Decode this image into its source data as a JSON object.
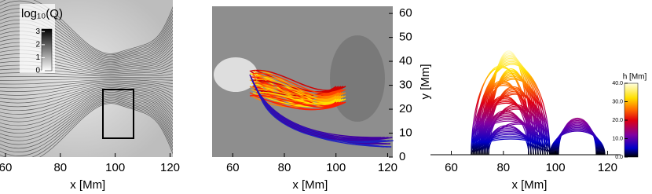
{
  "chart_data": [
    {
      "type": "image",
      "xlabel": "x [Mm]",
      "xlim": [
        58,
        121
      ],
      "xticks": [
        60,
        80,
        100,
        120
      ],
      "colorbar": {
        "label": "log₁₀(Q)",
        "lim": [
          0,
          3.2
        ],
        "ticks": [
          3,
          2,
          1,
          0
        ]
      }
    },
    {
      "type": "image",
      "xlabel": "x [Mm]",
      "ylabel": "y [Mm]",
      "xlim": [
        52,
        122
      ],
      "xticks": [
        60,
        80,
        100,
        120
      ],
      "ylim": [
        0,
        63
      ],
      "yticks": [
        0,
        10,
        20,
        30,
        40,
        50,
        60
      ]
    },
    {
      "type": "image",
      "xlabel": "x [Mm]",
      "xlim": [
        52,
        125
      ],
      "xticks": [
        60,
        80,
        100,
        120
      ],
      "colorbar": {
        "label": "h [Mm]",
        "lim": [
          0,
          40
        ],
        "ticks": [
          {
            "value": 0,
            "label": "0.0"
          },
          {
            "value": 10,
            "label": "10.0"
          },
          {
            "value": 20,
            "label": "20.0"
          },
          {
            "value": 30,
            "label": "30.0"
          },
          {
            "value": 40,
            "label": "40.0"
          }
        ]
      }
    }
  ]
}
